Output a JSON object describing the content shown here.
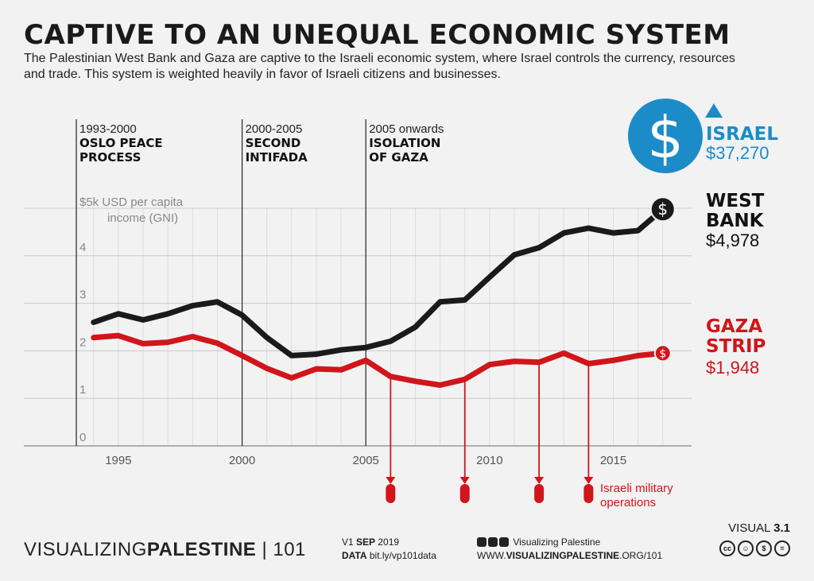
{
  "header": {
    "title": "CAPTIVE TO AN UNEQUAL ECONOMIC SYSTEM",
    "subtitle": "The Palestinian West Bank and Gaza are captive to the Israeli economic system, where Israel controls the currency, resources and trade. This system is weighted heavily in favor of Israeli citizens and businesses."
  },
  "chart_data": {
    "type": "line",
    "ylabel": "$5k USD per capita income (GNI)",
    "ylabel_line1": "$5k USD per capita",
    "ylabel_line2": "income (GNI)",
    "ylim": [
      0,
      5
    ],
    "y_ticks": [
      "0",
      "1",
      "2",
      "3",
      "4"
    ],
    "xlim": [
      1993.3,
      2017.2
    ],
    "x_ticks": [
      1995,
      2000,
      2005,
      2010,
      2015
    ],
    "x_tick_labels": [
      "1995",
      "2000",
      "2005",
      "2010",
      "2015"
    ],
    "grid": true,
    "periods": [
      {
        "start": 1993.3,
        "years": "1993-2000",
        "name_line1": "OSLO PEACE",
        "name_line2": "PROCESS"
      },
      {
        "start": 2000,
        "years": "2000-2005",
        "name_line1": "SECOND",
        "name_line2": "INTIFADA"
      },
      {
        "start": 2005,
        "years": "2005 onwards",
        "name_line1": "ISOLATION",
        "name_line2": "OF GAZA"
      }
    ],
    "series": [
      {
        "name_line1": "WEST",
        "name_line2": "BANK",
        "label_value": "$4,978",
        "color": "#1a1a1a",
        "x": [
          1994,
          1995,
          1996,
          1997,
          1998,
          1999,
          2000,
          2001,
          2002,
          2003,
          2004,
          2005,
          2006,
          2007,
          2008,
          2009,
          2010,
          2011,
          2012,
          2013,
          2014,
          2015,
          2016,
          2017
        ],
        "values": [
          2.6,
          2.78,
          2.65,
          2.78,
          2.95,
          3.03,
          2.75,
          2.28,
          1.9,
          1.93,
          2.02,
          2.07,
          2.2,
          2.5,
          3.03,
          3.07,
          3.55,
          4.02,
          4.17,
          4.48,
          4.58,
          4.48,
          4.53,
          4.98
        ]
      },
      {
        "name_line1": "GAZA",
        "name_line2": "STRIP",
        "label_value": "$1,948",
        "color": "#d0151b",
        "x": [
          1994,
          1995,
          1996,
          1997,
          1998,
          1999,
          2000,
          2001,
          2002,
          2003,
          2004,
          2005,
          2006,
          2007,
          2008,
          2009,
          2010,
          2011,
          2012,
          2013,
          2014,
          2015,
          2016,
          2017
        ],
        "values": [
          2.28,
          2.32,
          2.15,
          2.18,
          2.3,
          2.16,
          1.9,
          1.63,
          1.43,
          1.62,
          1.6,
          1.8,
          1.46,
          1.36,
          1.28,
          1.4,
          1.71,
          1.78,
          1.76,
          1.95,
          1.73,
          1.8,
          1.9,
          1.95
        ]
      }
    ],
    "israel": {
      "name": "ISRAEL",
      "value": "$37,270",
      "color": "#1c8cc8"
    },
    "operations": {
      "years": [
        2006.0,
        2009.0,
        2012.0,
        2014.0
      ],
      "label_line1": "Israeli military",
      "label_line2": "operations"
    }
  },
  "footer": {
    "brand_regular": "VISUALIZING",
    "brand_bold": "PALESTINE",
    "brand_suffix": " | 101",
    "version_prefix": "V1 ",
    "version_bold": "SEP",
    "version_year": " 2019",
    "data_label": "DATA",
    "data_link": " bit.ly/vp101data",
    "social_name": "Visualizing Palestine",
    "url_prefix": "WWW.",
    "url_bold": "VISUALIZINGPALESTINE",
    "url_suffix": ".ORG/101",
    "visual_label": "VISUAL ",
    "visual_number": "3.1",
    "cc_icons": [
      "cc",
      "by",
      "nc",
      "nd"
    ]
  }
}
